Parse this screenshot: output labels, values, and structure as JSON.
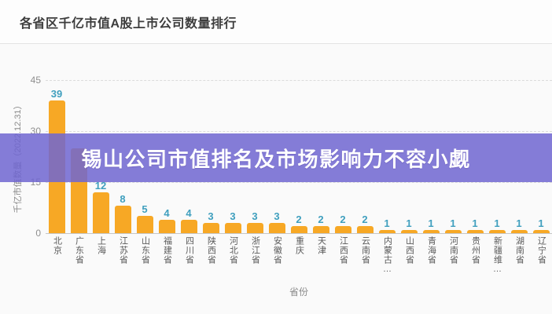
{
  "header": {
    "title": "各省区千亿市值A股上市公司数量排行"
  },
  "overlay_banner": {
    "text": "锡山公司市值排名及市场影响力不容小觑",
    "bg_color": "#7066D1",
    "text_color": "#FFFFFF"
  },
  "chart_data": {
    "type": "bar",
    "title": "各省区千亿市值A股上市公司数量排行",
    "xlabel": "省份",
    "ylabel": "千亿市值数量（2022.12.31）",
    "ylim": [
      0,
      45
    ],
    "yticks": [
      0,
      15,
      30,
      45
    ],
    "grid": "horizontal-dashed",
    "legend_position": "none",
    "bar_color": "#F7A825",
    "value_label_color": "#3F9FBE",
    "categories": [
      "北京",
      "广东省",
      "上海",
      "江苏省",
      "山东省",
      "福建省",
      "四川省",
      "陕西省",
      "河北省",
      "浙江省",
      "安徽省",
      "重庆",
      "天津",
      "江西省",
      "云南省",
      "内蒙古…",
      "山西省",
      "青海省",
      "河南省",
      "贵州省",
      "新疆维…",
      "湖南省",
      "辽宁省"
    ],
    "values": [
      39,
      25,
      12,
      8,
      5,
      4,
      4,
      3,
      3,
      3,
      3,
      2,
      2,
      2,
      2,
      1,
      1,
      1,
      1,
      1,
      1,
      1,
      1
    ],
    "display_labels": [
      "39",
      "",
      "12",
      "8",
      "5",
      "4",
      "4",
      "3",
      "3",
      "3",
      "3",
      "2",
      "2",
      "2",
      "2",
      "1",
      "1",
      "1",
      "1",
      "1",
      "1",
      "1",
      "1"
    ],
    "occlusion_note": "second bar value label hidden behind overlay banner"
  }
}
